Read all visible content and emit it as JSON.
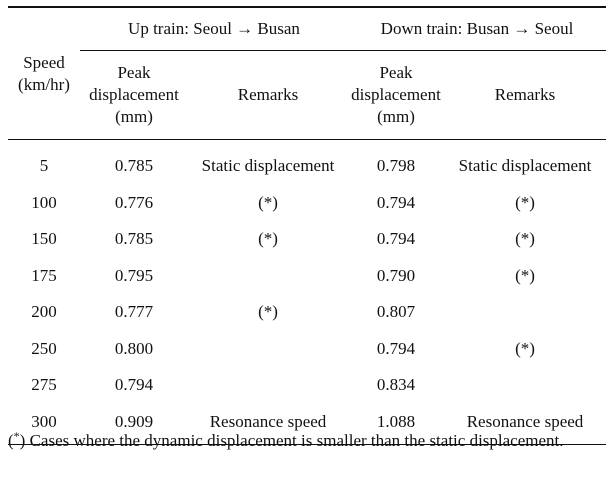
{
  "table": {
    "header": {
      "speed": [
        "Speed",
        "(km/hr)"
      ],
      "up_group": "Up train: Seoul → Busan",
      "down_group": "Down train: Busan → Seoul",
      "peak": [
        "Peak",
        "displacement",
        "(mm)"
      ],
      "remarks": "Remarks"
    },
    "rows": [
      {
        "speed": "5",
        "up_disp": "0.785",
        "up_remark": "Static displacement",
        "down_disp": "0.798",
        "down_remark": "Static displacement"
      },
      {
        "speed": "100",
        "up_disp": "0.776",
        "up_remark": "(*)",
        "down_disp": "0.794",
        "down_remark": "(*)"
      },
      {
        "speed": "150",
        "up_disp": "0.785",
        "up_remark": "(*)",
        "down_disp": "0.794",
        "down_remark": "(*)"
      },
      {
        "speed": "175",
        "up_disp": "0.795",
        "up_remark": "",
        "down_disp": "0.790",
        "down_remark": "(*)"
      },
      {
        "speed": "200",
        "up_disp": "0.777",
        "up_remark": "(*)",
        "down_disp": "0.807",
        "down_remark": ""
      },
      {
        "speed": "250",
        "up_disp": "0.800",
        "up_remark": "",
        "down_disp": "0.794",
        "down_remark": "(*)"
      },
      {
        "speed": "275",
        "up_disp": "0.794",
        "up_remark": "",
        "down_disp": "0.834",
        "down_remark": ""
      },
      {
        "speed": "300",
        "up_disp": "0.909",
        "up_remark": "Resonance speed",
        "down_disp": "1.088",
        "down_remark": "Resonance speed"
      }
    ]
  },
  "footnote": {
    "marker": "(*)",
    "text": "Cases where the dynamic displacement is smaller than the static displacement."
  }
}
